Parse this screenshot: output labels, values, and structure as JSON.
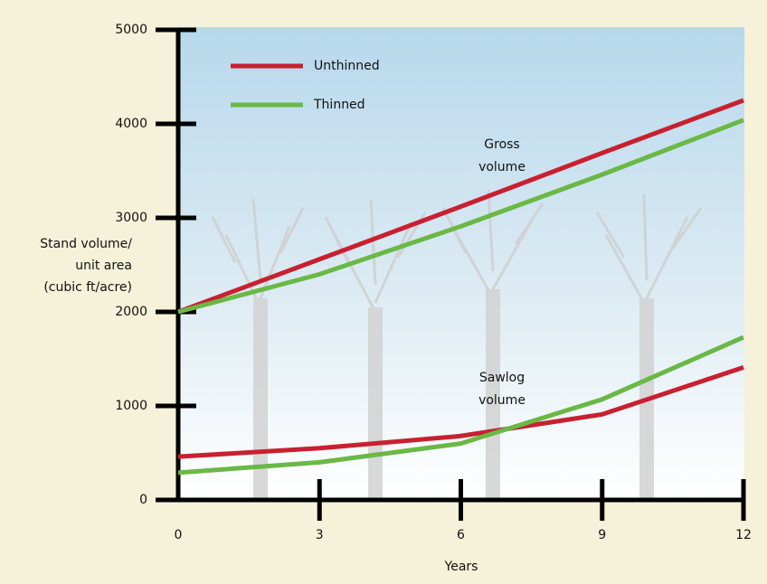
{
  "chart_data": {
    "type": "line",
    "x": [
      0,
      3,
      6,
      9,
      12
    ],
    "xlim": [
      0,
      12
    ],
    "xticks": [
      0,
      3,
      6,
      9,
      12
    ],
    "xlabel": "Years",
    "ylim": [
      0,
      5000
    ],
    "yticks": [
      0,
      1000,
      2000,
      3000,
      4000,
      5000
    ],
    "ylabel": [
      "Stand volume/",
      "unit area",
      "(cubic ft/acre)"
    ],
    "series": [
      {
        "name": "Unthinned",
        "color": "#c8202f",
        "values": [
          2000,
          2560,
          3120,
          3690,
          4250
        ],
        "sawlog_values": [
          460,
          550,
          680,
          910,
          1410
        ]
      },
      {
        "name": "Thinned",
        "color": "#6ab845",
        "values": [
          2000,
          2400,
          2910,
          3460,
          4040
        ],
        "sawlog_values": [
          290,
          400,
          600,
          1070,
          1730
        ]
      }
    ],
    "annotations": [
      {
        "lines": [
          "Gross",
          "volume"
        ]
      },
      {
        "lines": [
          "Sawlog",
          "volume"
        ]
      }
    ]
  }
}
